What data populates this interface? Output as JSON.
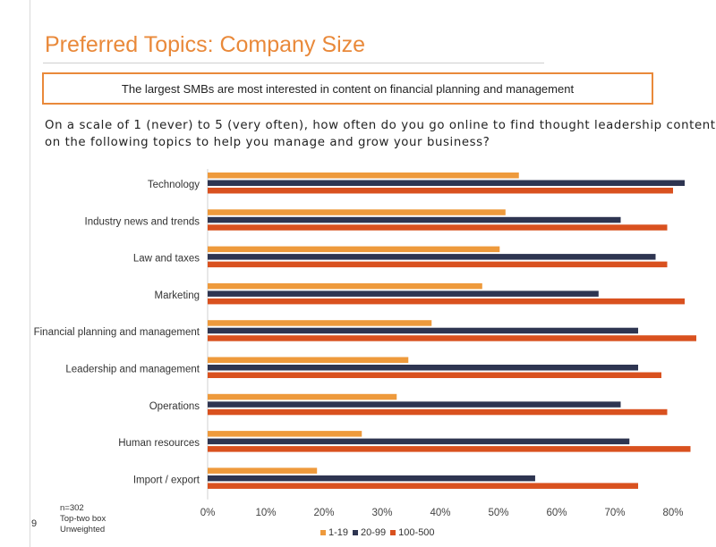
{
  "title": "Preferred Topics: Company Size",
  "callout": "The largest SMBs are most interested in content on financial planning and management",
  "question": {
    "line1": "On a scale of 1 (never) to 5 (very often), how often do you go online to find thought leadership content",
    "line2": "on the following topics to help you manage and grow your business?"
  },
  "footer": {
    "page_number": "9",
    "sample": "n=302",
    "measure": "Top-two box",
    "weighting": "Unweighted"
  },
  "colors": {
    "s1": "#ee9a3c",
    "s2": "#2e3551",
    "s3": "#d9511f"
  },
  "chart_data": {
    "type": "bar",
    "orientation": "horizontal",
    "categories": [
      "Technology",
      "Industry news and trends",
      "Law and taxes",
      "Marketing",
      "Financial planning and management",
      "Leadership and management",
      "Operations",
      "Human resources",
      "Import / export"
    ],
    "series": [
      {
        "name": "1-19",
        "values": [
          53.5,
          51.2,
          50.2,
          47.2,
          38.5,
          34.5,
          32.5,
          26.5,
          18.8
        ]
      },
      {
        "name": "20-99",
        "values": [
          82.0,
          71.0,
          77.0,
          67.2,
          74.0,
          74.0,
          71.0,
          72.5,
          56.3
        ]
      },
      {
        "name": "100-500",
        "values": [
          80.0,
          79.0,
          79.0,
          82.0,
          84.0,
          78.0,
          79.0,
          83.0,
          74.0
        ]
      }
    ],
    "xlim": [
      0,
      85
    ],
    "xticks": [
      "0%",
      "10%",
      "20%",
      "30%",
      "40%",
      "50%",
      "60%",
      "70%",
      "80%"
    ],
    "xtick_values": [
      0,
      10,
      20,
      30,
      40,
      50,
      60,
      70,
      80
    ],
    "legend_position": "bottom"
  }
}
